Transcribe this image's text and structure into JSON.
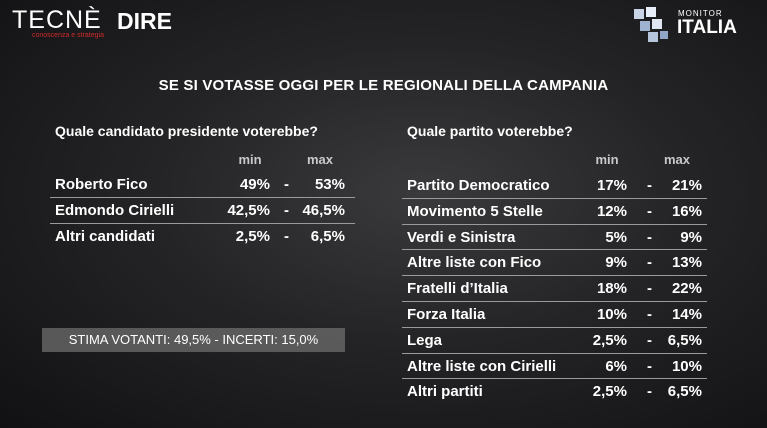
{
  "logos": {
    "tecne": "TECNÈ",
    "tecne_sub": "conoscenza e strategia",
    "dire": "DIRE",
    "monitor": "MONITOR",
    "italia": "ITALIA"
  },
  "title": "SE SI VOTASSE OGGI PER LE REGIONALI DELLA CAMPANIA",
  "dash": "-",
  "left": {
    "question": "Quale candidato presidente voterebbe?",
    "headers": [
      "min",
      "max"
    ],
    "rows": [
      [
        "Roberto Fico",
        "49%",
        "53%"
      ],
      [
        "Edmondo Cirielli",
        "42,5%",
        "46,5%"
      ],
      [
        "Altri candidati",
        "2,5%",
        "6,5%"
      ]
    ]
  },
  "right": {
    "question": "Quale partito voterebbe?",
    "headers": [
      "min",
      "max"
    ],
    "rows": [
      [
        "Partito Democratico",
        "17%",
        "21%"
      ],
      [
        "Movimento 5 Stelle",
        "12%",
        "16%"
      ],
      [
        "Verdi e Sinistra",
        "5%",
        "9%"
      ],
      [
        "Altre liste con Fico",
        "9%",
        "13%"
      ],
      [
        "Fratelli d’Italia",
        "18%",
        "22%"
      ],
      [
        "Forza Italia",
        "10%",
        "14%"
      ],
      [
        "Lega",
        "2,5%",
        "6,5%"
      ],
      [
        "Altre liste con Cirielli",
        "6%",
        "10%"
      ],
      [
        "Altri partiti",
        "2,5%",
        "6,5%"
      ]
    ]
  },
  "note": "STIMA VOTANTI: 49,5% - INCERTI: 15,0%"
}
